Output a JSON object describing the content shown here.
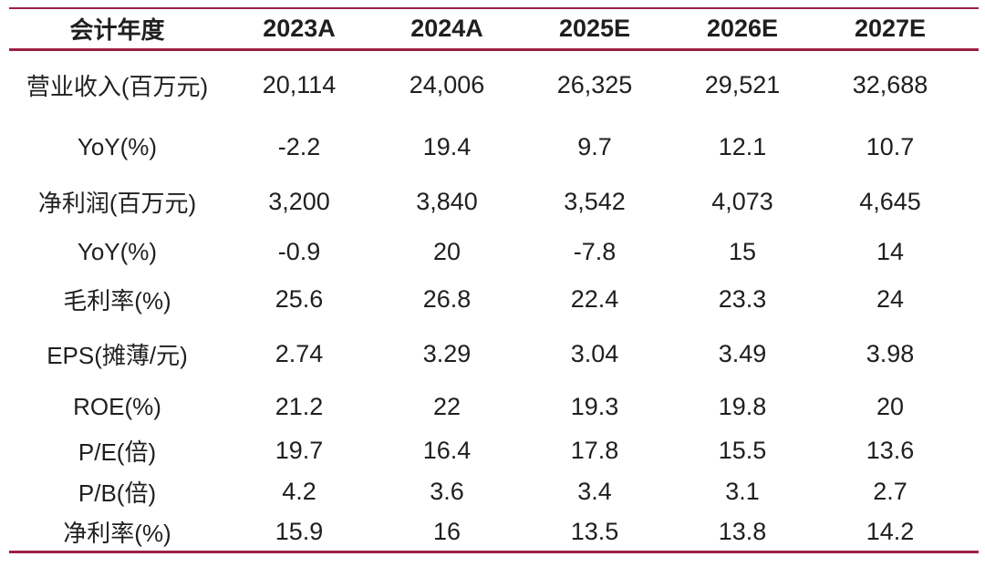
{
  "colors": {
    "accent": "#9e2043",
    "text": "#1f1f1f",
    "background": "#ffffff"
  },
  "table": {
    "header": {
      "label": "会计年度",
      "columns": [
        "2023A",
        "2024A",
        "2025E",
        "2026E",
        "2027E"
      ]
    },
    "rows": [
      {
        "label": "营业收入(百万元)",
        "values": [
          "20,114",
          "24,006",
          "26,325",
          "29,521",
          "32,688"
        ]
      },
      {
        "label": "YoY(%)",
        "values": [
          "-2.2",
          "19.4",
          "9.7",
          "12.1",
          "10.7"
        ]
      },
      {
        "label": "净利润(百万元)",
        "values": [
          "3,200",
          "3,840",
          "3,542",
          "4,073",
          "4,645"
        ]
      },
      {
        "label": "YoY(%)",
        "values": [
          "-0.9",
          "20",
          "-7.8",
          "15",
          "14"
        ]
      },
      {
        "label": "毛利率(%)",
        "values": [
          "25.6",
          "26.8",
          "22.4",
          "23.3",
          "24"
        ]
      },
      {
        "label": "EPS(摊薄/元)",
        "values": [
          "2.74",
          "3.29",
          "3.04",
          "3.49",
          "3.98"
        ]
      },
      {
        "label": "ROE(%)",
        "values": [
          "21.2",
          "22",
          "19.3",
          "19.8",
          "20"
        ]
      },
      {
        "label": "P/E(倍)",
        "values": [
          "19.7",
          "16.4",
          "17.8",
          "15.5",
          "13.6"
        ]
      },
      {
        "label": "P/B(倍)",
        "values": [
          "4.2",
          "3.6",
          "3.4",
          "3.1",
          "2.7"
        ]
      },
      {
        "label": "净利率(%)",
        "values": [
          "15.9",
          "16",
          "13.5",
          "13.8",
          "14.2"
        ]
      }
    ]
  }
}
